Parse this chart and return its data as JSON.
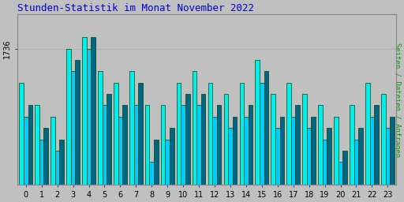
{
  "title": "Stunden-Statistik im Monat November 2022",
  "ylabel": "Seiten / Dateien / Anfragen",
  "xlabel_ticks": [
    0,
    1,
    2,
    3,
    4,
    5,
    6,
    7,
    8,
    9,
    10,
    11,
    12,
    13,
    14,
    15,
    16,
    17,
    18,
    19,
    20,
    21,
    22,
    23
  ],
  "ytick_label": "1736",
  "background_color": "#c0c0c0",
  "plot_background": "#c0c0c0",
  "title_color": "#0000cc",
  "ylabel_color": "#009900",
  "bar1_color": "#00eeee",
  "bar2_color": "#00ccff",
  "bar3_color": "#006688",
  "bar_edge_color": "#004400",
  "bar_width": 0.28,
  "bar1_heights": [
    1733,
    1731,
    1730,
    1736,
    1737,
    1734,
    1733,
    1734,
    1731,
    1731,
    1733,
    1734,
    1733,
    1732,
    1733,
    1735,
    1732,
    1733,
    1732,
    1731,
    1730,
    1731,
    1733,
    1732
  ],
  "bar2_heights": [
    1730,
    1728,
    1727,
    1734,
    1736,
    1731,
    1730,
    1731,
    1726,
    1728,
    1731,
    1731,
    1730,
    1729,
    1730,
    1733,
    1729,
    1730,
    1729,
    1728,
    1726,
    1728,
    1730,
    1729
  ],
  "bar3_heights": [
    1731,
    1729,
    1728,
    1735,
    1737,
    1732,
    1731,
    1733,
    1728,
    1729,
    1732,
    1732,
    1731,
    1730,
    1731,
    1734,
    1730,
    1731,
    1730,
    1729,
    1727,
    1729,
    1731,
    1730
  ],
  "ylim_bottom": 1724,
  "ylim_top": 1739,
  "ytick_val": 1736,
  "figure_bg": "#c0c0c0"
}
